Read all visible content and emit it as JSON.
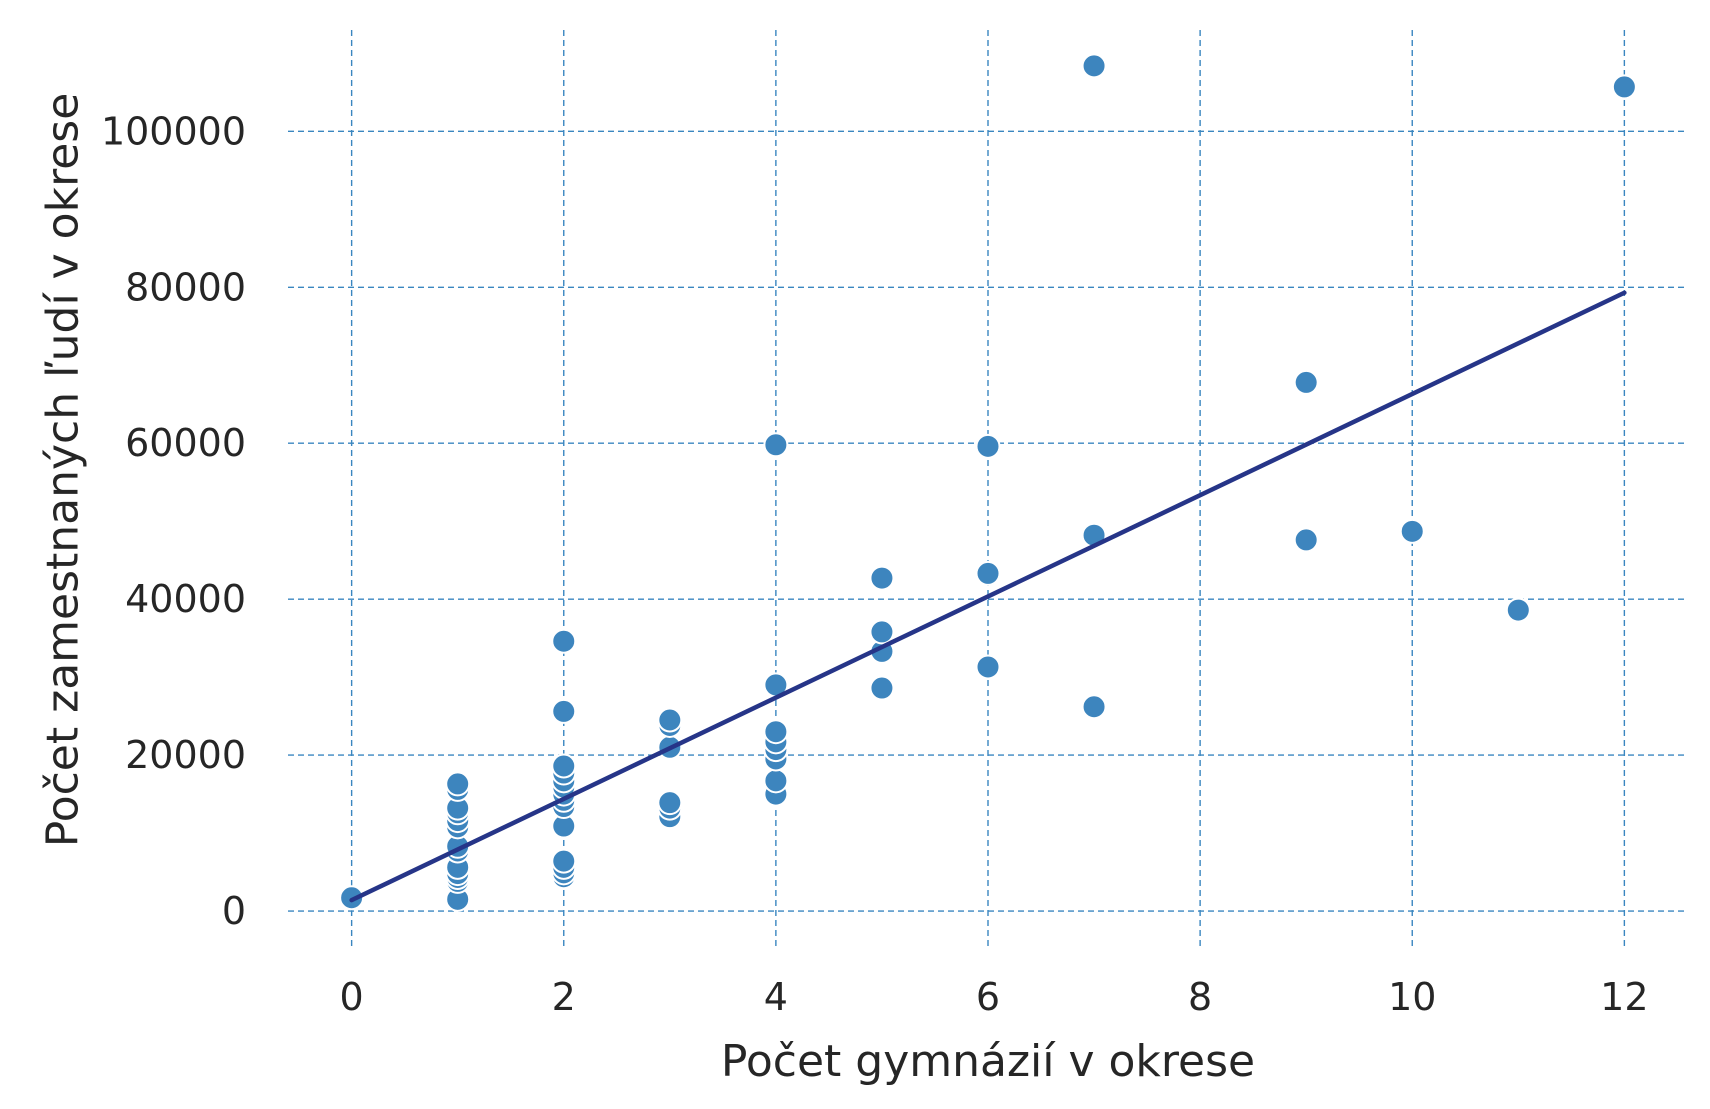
{
  "chart_data": {
    "type": "scatter",
    "title": "",
    "xlabel": "Počet gymnázií v okrese",
    "ylabel": "Počet zamestnaných ľudí v okrese",
    "xlim": [
      -0.6,
      12.6
    ],
    "ylim": [
      -5000,
      113000
    ],
    "xticks": [
      0,
      2,
      4,
      6,
      8,
      10,
      12
    ],
    "xtick_labels": [
      "0",
      "2",
      "4",
      "6",
      "8",
      "10",
      "12"
    ],
    "yticks": [
      0,
      20000,
      40000,
      60000,
      80000,
      100000
    ],
    "ytick_labels": [
      "0",
      "20000",
      "40000",
      "60000",
      "80000",
      "100000"
    ],
    "grid": true,
    "grid_style": "dashed",
    "colors": {
      "points": "#3d85be",
      "fit_line": "#263588",
      "grid": "#3a86c0",
      "text": "#262626"
    },
    "series": [
      {
        "type": "scatter",
        "points": [
          [
            0,
            1700
          ],
          [
            1,
            1500
          ],
          [
            1,
            3800
          ],
          [
            1,
            4300
          ],
          [
            1,
            4800
          ],
          [
            1,
            5600
          ],
          [
            1,
            7700
          ],
          [
            1,
            8300
          ],
          [
            1,
            10800
          ],
          [
            1,
            11600
          ],
          [
            1,
            12600
          ],
          [
            1,
            13200
          ],
          [
            1,
            15600
          ],
          [
            1,
            16300
          ],
          [
            2,
            4400
          ],
          [
            2,
            4900
          ],
          [
            2,
            5600
          ],
          [
            2,
            6400
          ],
          [
            2,
            10900
          ],
          [
            2,
            13400
          ],
          [
            2,
            14200
          ],
          [
            2,
            15000
          ],
          [
            2,
            15900
          ],
          [
            2,
            16700
          ],
          [
            2,
            17700
          ],
          [
            2,
            18600
          ],
          [
            2,
            25600
          ],
          [
            2,
            34600
          ],
          [
            3,
            12100
          ],
          [
            3,
            13200
          ],
          [
            3,
            13900
          ],
          [
            3,
            21000
          ],
          [
            3,
            23800
          ],
          [
            3,
            24500
          ],
          [
            4,
            15000
          ],
          [
            4,
            16700
          ],
          [
            4,
            19500
          ],
          [
            4,
            20700
          ],
          [
            4,
            21700
          ],
          [
            4,
            23000
          ],
          [
            4,
            29000
          ],
          [
            4,
            59800
          ],
          [
            5,
            28600
          ],
          [
            5,
            33300
          ],
          [
            5,
            35800
          ],
          [
            5,
            42700
          ],
          [
            6,
            31300
          ],
          [
            6,
            43300
          ],
          [
            6,
            59600
          ],
          [
            7,
            26200
          ],
          [
            7,
            48200
          ],
          [
            7,
            108400
          ],
          [
            9,
            47600
          ],
          [
            9,
            67800
          ],
          [
            10,
            48700
          ],
          [
            11,
            38600
          ],
          [
            12,
            105700
          ]
        ]
      },
      {
        "type": "line",
        "x": [
          0,
          12
        ],
        "y": [
          1400,
          79300
        ]
      }
    ]
  }
}
